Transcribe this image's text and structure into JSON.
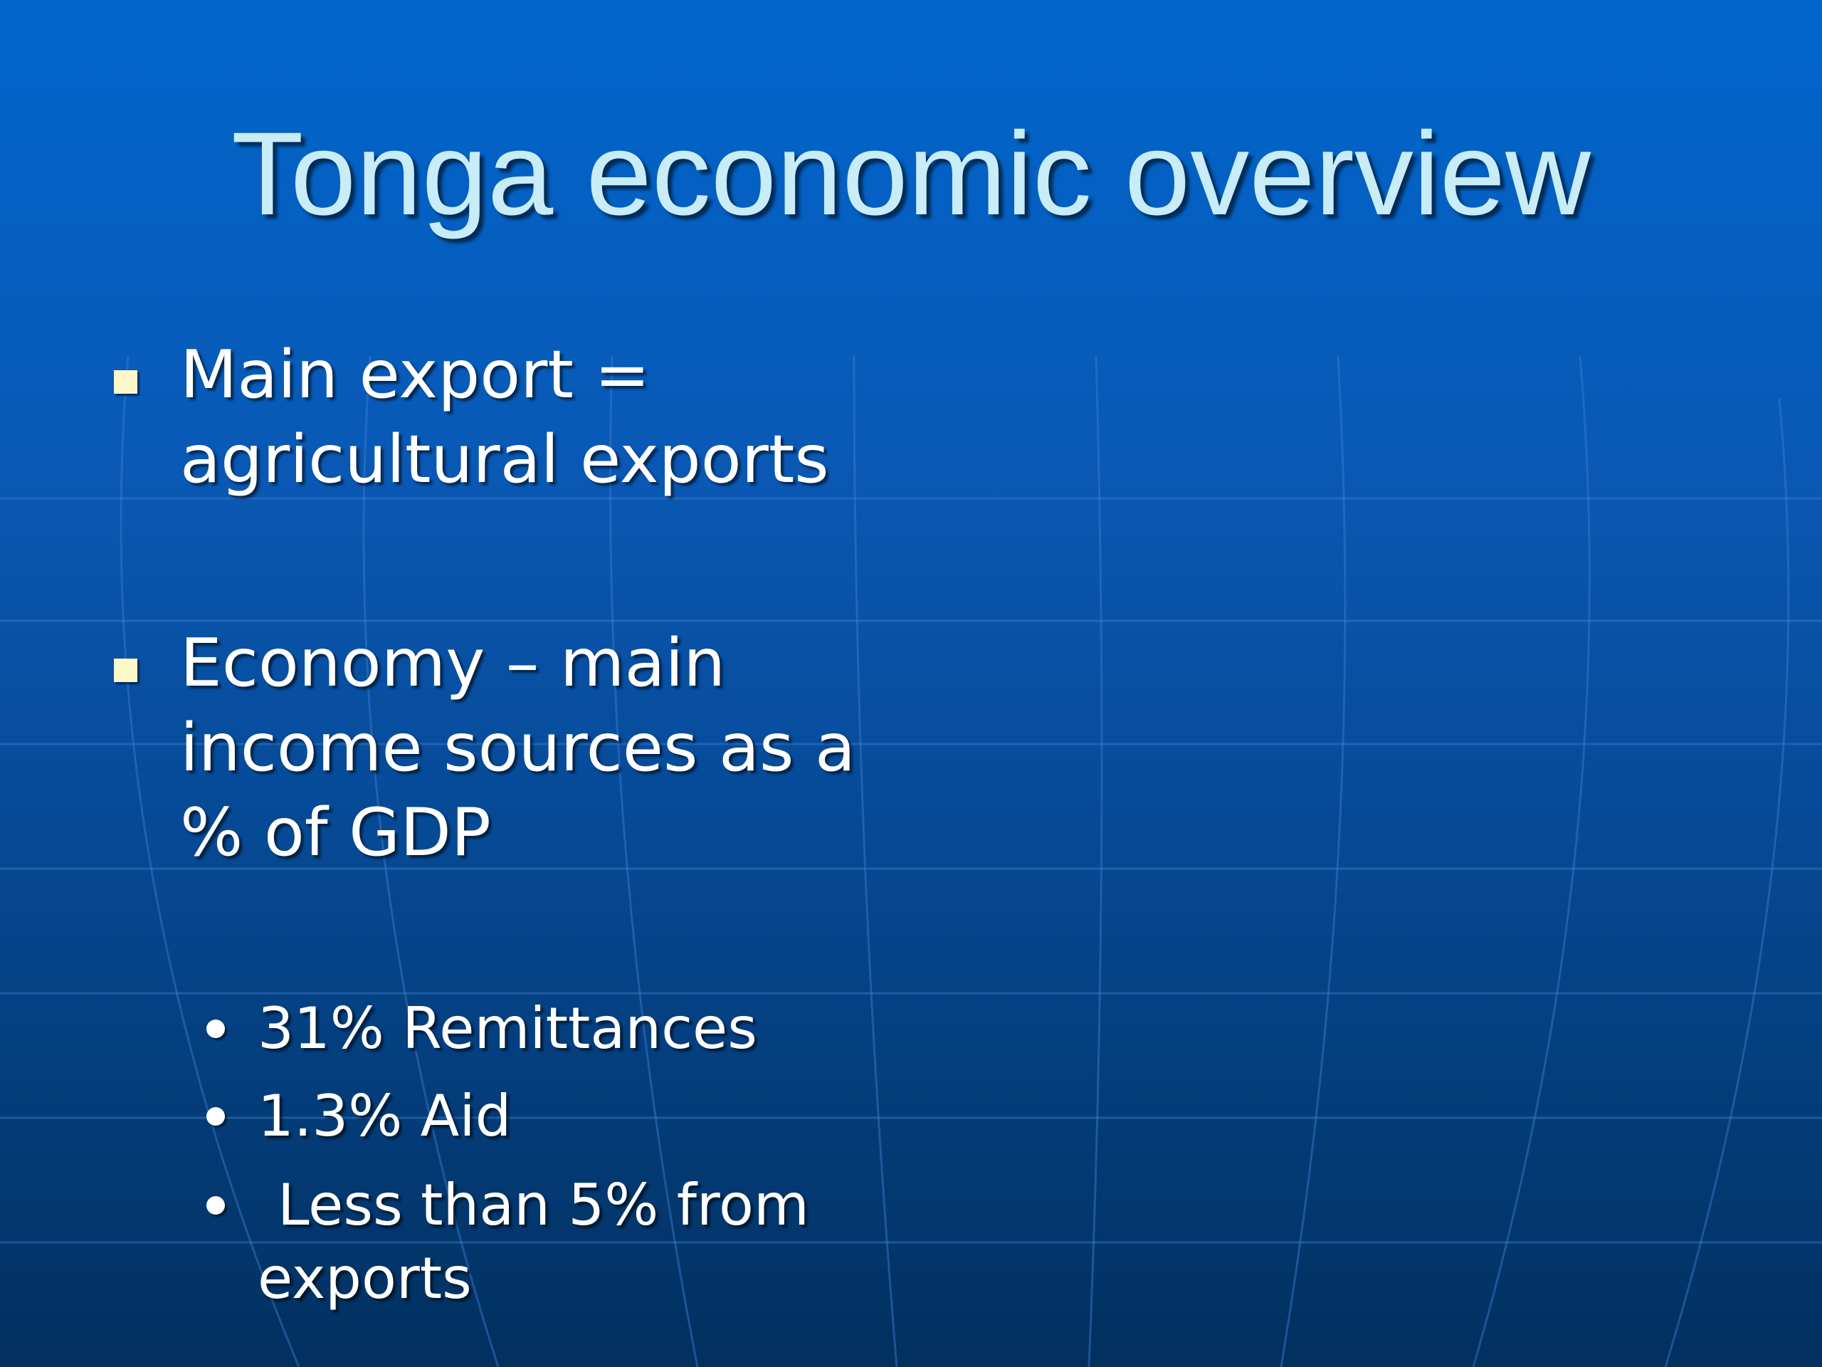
{
  "title": "Tonga economic overview",
  "bullets": [
    {
      "text": "Main export = agricultural exports"
    },
    {
      "text": "Economy – main income sources as a % of GDP",
      "sub_bullets": [
        "31% Remittances",
        "1.3% Aid",
        "Less than 5% from exports"
      ]
    }
  ]
}
